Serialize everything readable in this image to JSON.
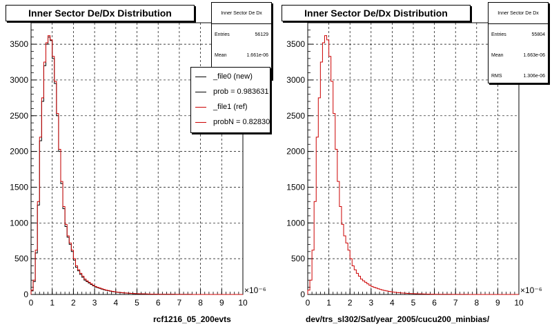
{
  "footer_text": "",
  "chart_data": [
    {
      "type": "histogram",
      "title": "Inner Sector De/Dx Distribution",
      "xlabel": "rcf1216_05_200evts",
      "x_exponent_label": "×10⁻⁶",
      "xlim": [
        0,
        10
      ],
      "ylim": [
        0,
        3800
      ],
      "x_ticks": [
        "0",
        "1",
        "2",
        "3",
        "4",
        "5",
        "6",
        "7",
        "8",
        "9",
        "10"
      ],
      "y_ticks": [
        "0",
        "500",
        "1000",
        "1500",
        "2000",
        "2500",
        "3000",
        "3500"
      ],
      "grid": true,
      "bin_width": 0.1,
      "stats": {
        "title": "Inner Sector De Dx",
        "rows": [
          {
            "label": "Entries",
            "value": "56129"
          },
          {
            "label": "Mean",
            "value": "1.661e-06"
          }
        ]
      },
      "legend": [
        {
          "label": "_file0 (new)",
          "color": "#000000"
        },
        {
          "label": "prob = 0.983631",
          "color": "#000000"
        },
        {
          "label": "_file1 (ref)",
          "color": "#cc0000"
        },
        {
          "label": "probN = 0.82830",
          "color": "#cc0000"
        }
      ],
      "series": [
        {
          "color": "#000000",
          "values": [
            50,
            180,
            580,
            1250,
            2150,
            2700,
            3200,
            3500,
            3600,
            3550,
            3300,
            2950,
            2500,
            2000,
            1550,
            1200,
            950,
            800,
            700,
            600,
            480,
            380,
            330,
            280,
            240,
            200,
            180,
            160,
            140,
            120,
            105,
            95,
            85,
            75,
            65,
            58,
            52,
            46,
            40,
            36,
            32,
            28,
            25,
            22,
            20,
            18,
            16,
            14,
            12,
            11,
            10,
            9,
            8,
            7,
            6,
            5,
            5,
            4,
            4,
            3,
            3,
            3,
            3,
            2,
            2,
            2,
            2,
            2,
            1,
            1,
            1,
            1,
            1,
            1,
            1,
            1,
            0,
            0,
            0,
            0,
            0,
            0,
            0,
            0,
            0,
            0,
            0,
            0,
            0,
            0,
            0,
            0,
            0,
            0,
            0,
            0,
            0,
            0,
            0,
            0
          ]
        },
        {
          "color": "#cc0000",
          "values": [
            60,
            200,
            620,
            1300,
            2200,
            2750,
            3250,
            3520,
            3620,
            3560,
            3330,
            2980,
            2530,
            2030,
            1580,
            1230,
            980,
            820,
            720,
            620,
            500,
            400,
            345,
            295,
            255,
            215,
            190,
            170,
            148,
            128,
            112,
            100,
            90,
            80,
            70,
            62,
            55,
            49,
            43,
            38,
            34,
            30,
            27,
            24,
            21,
            19,
            17,
            15,
            13,
            12,
            11,
            10,
            9,
            8,
            7,
            6,
            5,
            5,
            4,
            4,
            3,
            3,
            3,
            2,
            2,
            2,
            2,
            2,
            1,
            1,
            1,
            1,
            1,
            1,
            1,
            1,
            0,
            0,
            0,
            0,
            0,
            0,
            0,
            0,
            0,
            0,
            0,
            0,
            0,
            0,
            0,
            0,
            0,
            0,
            0,
            0,
            0,
            0,
            0,
            0
          ]
        }
      ]
    },
    {
      "type": "histogram",
      "title": "Inner Sector De/Dx Distribution",
      "xlabel": "dev/trs_sl302/Sat/year_2005/cucu200_minbias/",
      "x_exponent_label": "×10⁻⁶",
      "xlim": [
        0,
        10
      ],
      "ylim": [
        0,
        3800
      ],
      "x_ticks": [
        "0",
        "1",
        "2",
        "3",
        "4",
        "5",
        "6",
        "7",
        "8",
        "9",
        "10"
      ],
      "y_ticks": [
        "0",
        "500",
        "1000",
        "1500",
        "2000",
        "2500",
        "3000",
        "3500"
      ],
      "grid": true,
      "bin_width": 0.1,
      "stats": {
        "title": "Inner Sector De Dx",
        "rows": [
          {
            "label": "Entries",
            "value": "55804"
          },
          {
            "label": "Mean",
            "value": "1.663e-06"
          },
          {
            "label": "RMS",
            "value": "1.306e-06"
          }
        ]
      },
      "legend": [],
      "series": [
        {
          "color": "#cc0000",
          "values": [
            60,
            200,
            620,
            1300,
            2200,
            2750,
            3250,
            3520,
            3620,
            3560,
            3330,
            2980,
            2530,
            2030,
            1580,
            1230,
            980,
            820,
            720,
            620,
            500,
            400,
            345,
            295,
            255,
            215,
            190,
            170,
            148,
            128,
            112,
            100,
            90,
            80,
            70,
            62,
            55,
            49,
            43,
            38,
            34,
            30,
            27,
            24,
            21,
            19,
            17,
            15,
            13,
            12,
            11,
            10,
            9,
            8,
            7,
            6,
            5,
            5,
            4,
            4,
            3,
            3,
            3,
            2,
            2,
            2,
            2,
            2,
            1,
            1,
            1,
            1,
            1,
            1,
            1,
            1,
            0,
            0,
            0,
            0,
            0,
            0,
            0,
            0,
            0,
            0,
            0,
            0,
            0,
            0,
            0,
            0,
            0,
            0,
            0,
            0,
            0,
            0,
            0,
            0
          ]
        }
      ]
    }
  ]
}
